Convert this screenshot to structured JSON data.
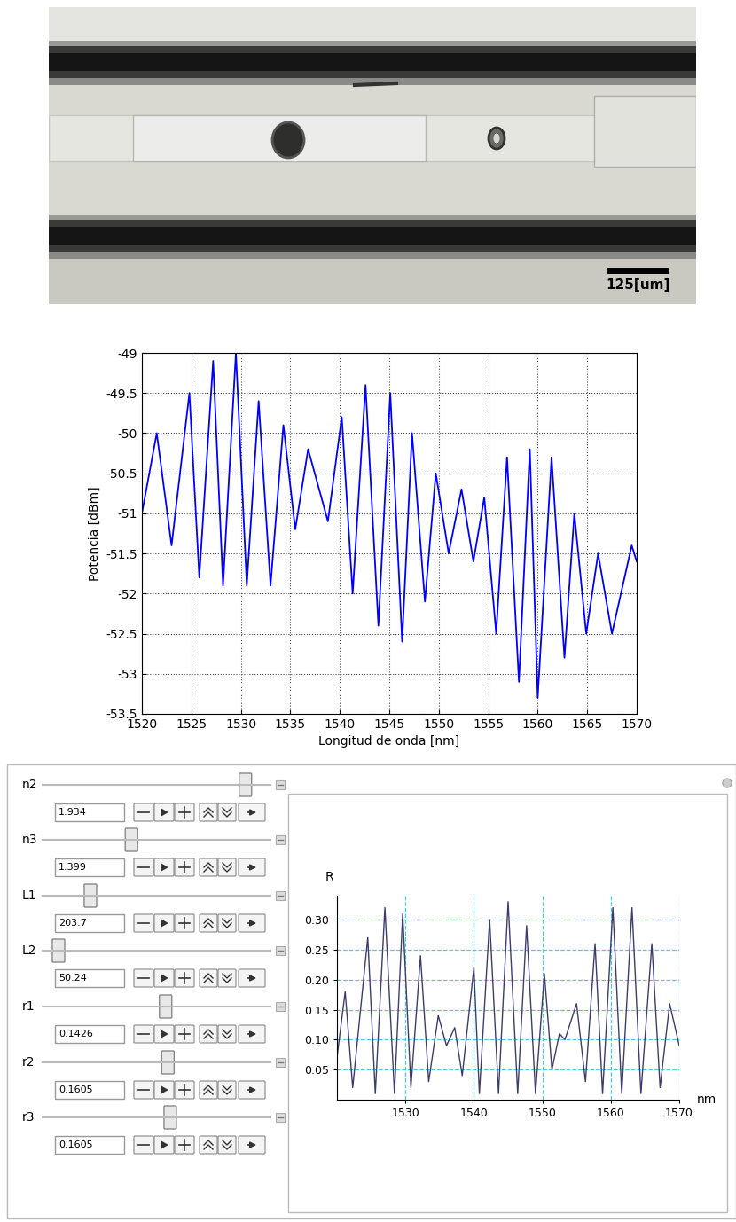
{
  "image": {
    "scale_bar_label": "125[um]"
  },
  "chart_data": [
    {
      "type": "line",
      "x": [
        1520,
        1521.5,
        1523,
        1524.8,
        1525.8,
        1527.2,
        1528.2,
        1529.5,
        1530.6,
        1531.8,
        1533,
        1534.3,
        1535.5,
        1536.8,
        1538.8,
        1540.2,
        1541.3,
        1542.6,
        1543.9,
        1545.1,
        1546.3,
        1547.3,
        1548.6,
        1549.7,
        1551,
        1552.3,
        1553.5,
        1554.6,
        1555.8,
        1556.9,
        1558.1,
        1559.2,
        1560,
        1561.4,
        1562.7,
        1563.7,
        1564.9,
        1566.1,
        1567.5,
        1569.5,
        1570
      ],
      "values": [
        -51.0,
        -50.0,
        -51.4,
        -49.5,
        -51.8,
        -49.1,
        -51.9,
        -49.0,
        -51.9,
        -49.6,
        -51.9,
        -49.9,
        -51.2,
        -50.2,
        -51.1,
        -49.8,
        -52.0,
        -49.4,
        -52.4,
        -49.5,
        -52.6,
        -50.0,
        -52.1,
        -50.5,
        -51.5,
        -50.7,
        -51.6,
        -50.8,
        -52.5,
        -50.3,
        -53.1,
        -50.2,
        -53.3,
        -50.3,
        -52.8,
        -51.0,
        -52.5,
        -51.5,
        -52.5,
        -51.4,
        -51.6
      ],
      "color": "#0000ff",
      "xlabel": "Longitud de onda [nm]",
      "ylabel": "Potencia [dBm]",
      "xlim": [
        1520,
        1570
      ],
      "ylim": [
        -53.5,
        -49
      ],
      "xticks": [
        1520,
        1525,
        1530,
        1535,
        1540,
        1545,
        1550,
        1555,
        1560,
        1565,
        1570
      ],
      "yticks": [
        -53.5,
        -53,
        -52.5,
        -52,
        -51.5,
        -51,
        -50.5,
        -50,
        -49.5,
        -49
      ],
      "grid": true
    },
    {
      "type": "line",
      "x": [
        1520,
        1521.2,
        1522.3,
        1524.5,
        1525.6,
        1527,
        1528.4,
        1529.6,
        1530.8,
        1532.2,
        1533.4,
        1534.8,
        1536,
        1537.2,
        1538.3,
        1540,
        1540.8,
        1542.3,
        1543.6,
        1545,
        1546.4,
        1547.7,
        1549,
        1550.3,
        1551.4,
        1552.5,
        1553.3,
        1555,
        1556.3,
        1557.7,
        1558.8,
        1560.3,
        1561.6,
        1563.1,
        1564.4,
        1566,
        1567.2,
        1568.6,
        1570
      ],
      "values": [
        0.07,
        0.18,
        0.02,
        0.27,
        0.01,
        0.32,
        0.01,
        0.31,
        0.02,
        0.24,
        0.03,
        0.14,
        0.09,
        0.12,
        0.04,
        0.22,
        0.01,
        0.3,
        0.01,
        0.33,
        0.01,
        0.29,
        0.01,
        0.21,
        0.05,
        0.11,
        0.1,
        0.16,
        0.03,
        0.26,
        0.01,
        0.32,
        0.01,
        0.32,
        0.01,
        0.26,
        0.02,
        0.16,
        0.09
      ],
      "color": "#3c3c6e",
      "xlabel": "nm",
      "ylabel": "R",
      "xlim": [
        1520,
        1570
      ],
      "ylim": [
        0,
        0.34
      ],
      "xticks": [
        1530,
        1540,
        1550,
        1560,
        1570
      ],
      "yticks": [
        0.05,
        {
          "value": 0.1,
          "label": "0.10"
        },
        0.15,
        {
          "value": 0.2,
          "label": "0.20"
        },
        0.25,
        {
          "value": 0.3,
          "label": "0.30"
        }
      ],
      "grid": true
    }
  ],
  "controls": [
    {
      "name": "n2",
      "value": 1.934
    },
    {
      "name": "n3",
      "value": 1.399
    },
    {
      "name": "L1",
      "value": 203.7
    },
    {
      "name": "L2",
      "value": 50.24
    },
    {
      "name": "r1",
      "value": 0.1426
    },
    {
      "name": "r2",
      "value": 0.1605
    },
    {
      "name": "r3",
      "value": 0.1605
    }
  ]
}
